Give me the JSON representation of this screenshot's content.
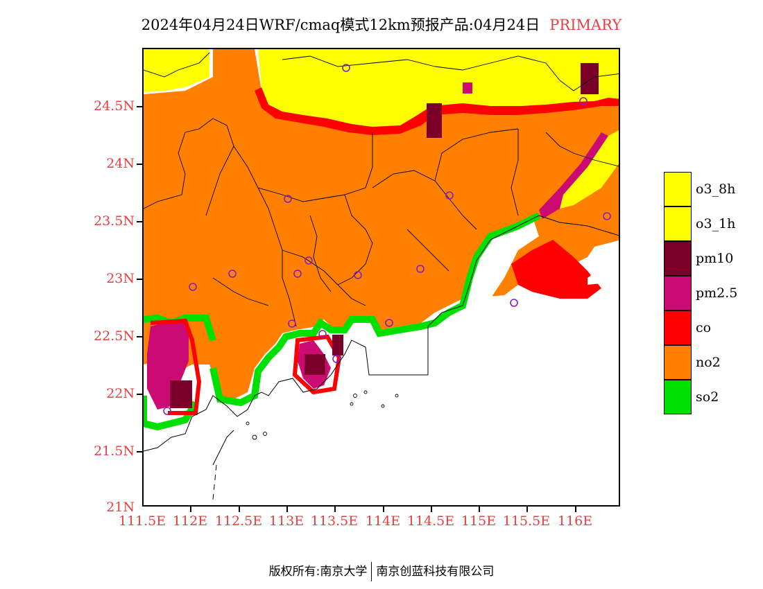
{
  "title": {
    "main": "2024年04月24日WRF/cmaq模式12km预报产品:04月24日",
    "tag": "PRIMARY"
  },
  "map": {
    "lat_labels": [
      "24.5N",
      "24N",
      "23.5N",
      "23N",
      "22.5N",
      "22N",
      "21.5N",
      "21N"
    ],
    "lon_labels": [
      "111.5E",
      "112E",
      "112.5E",
      "113E",
      "113.5E",
      "114E",
      "114.5E",
      "115E",
      "115.5E",
      "116E"
    ],
    "lon_range": [
      111.5,
      116.5
    ],
    "lat_range": [
      21,
      25
    ],
    "pollutant_grid_note": "",
    "city_marker": "circle",
    "colors": {
      "o3_8h": "#ffff00",
      "o3_1h": "#ffff00",
      "pm10": "#7a0029",
      "pm2.5": "#cc0a74",
      "co": "#ff0000",
      "no2": "#ff8000",
      "so2": "#00e000",
      "marker": "#8020c0"
    }
  },
  "legend": [
    {
      "label": "o3_8h",
      "color": "#ffff00"
    },
    {
      "label": "o3_1h",
      "color": "#ffff00"
    },
    {
      "label": "pm10",
      "color": "#7a0029"
    },
    {
      "label": "pm2.5",
      "color": "#cc0a74"
    },
    {
      "label": "co",
      "color": "#ff0000"
    },
    {
      "label": "no2",
      "color": "#ff8000"
    },
    {
      "label": "so2",
      "color": "#00e000"
    }
  ],
  "footer": {
    "left": "版权所有:南京大学",
    "right": "南京创蓝科技有限公司"
  }
}
